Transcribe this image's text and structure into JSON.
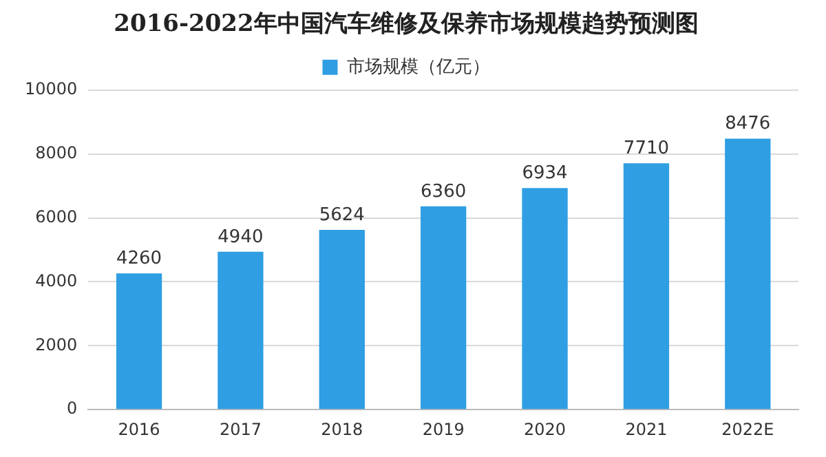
{
  "chart_data": {
    "type": "bar",
    "title": "2016-2022年中国汽车维修及保养市场规模趋势预测图",
    "categories": [
      "2016",
      "2017",
      "2018",
      "2019",
      "2020",
      "2021",
      "2022E"
    ],
    "series": [
      {
        "name": "市场规模（亿元）",
        "color": "#2f9ee3",
        "values": [
          4260,
          4940,
          5624,
          6360,
          6934,
          7710,
          8476
        ]
      }
    ],
    "ylim": [
      0,
      10000
    ],
    "yticks": [
      0,
      2000,
      4000,
      6000,
      8000,
      10000
    ],
    "grid": "y",
    "legend": "top",
    "data_labels": true
  }
}
